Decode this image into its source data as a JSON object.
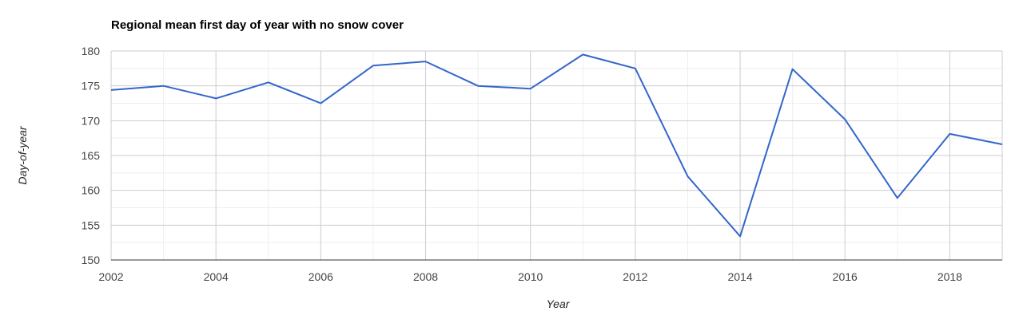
{
  "chart_data": {
    "type": "line",
    "title": "Regional mean first day of year with no snow cover",
    "xlabel": "Year",
    "ylabel": "Day-of-year",
    "xlim": [
      2002,
      2019
    ],
    "ylim": [
      150,
      180
    ],
    "x_ticks": [
      2002,
      2004,
      2006,
      2008,
      2010,
      2012,
      2014,
      2016,
      2018
    ],
    "y_ticks": [
      150,
      155,
      160,
      165,
      170,
      175,
      180
    ],
    "grid": true,
    "legend": "none",
    "series": [
      {
        "color": "#3366cc",
        "x": [
          2002,
          2003,
          2004,
          2005,
          2006,
          2007,
          2008,
          2009,
          2010,
          2011,
          2012,
          2013,
          2014,
          2015,
          2016,
          2017,
          2018,
          2019
        ],
        "y": [
          174.4,
          175.0,
          173.2,
          175.5,
          172.5,
          177.9,
          178.5,
          175.0,
          174.6,
          179.5,
          177.5,
          162.0,
          153.4,
          177.4,
          170.2,
          158.9,
          168.1,
          166.6
        ]
      }
    ]
  }
}
